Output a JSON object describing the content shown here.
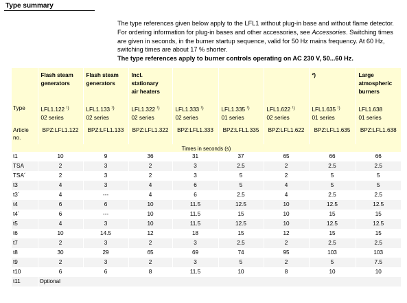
{
  "section_title": "Type summary",
  "intro": {
    "p1": "The type references given below apply to the LFL1 without plug-in base and without flame detector. For ordering information for plug-in bases and other accessories, see",
    "p1_italic": "Accessories",
    "p1_rest": ". Switching times are given in seconds, in the burner startup sequence, valid for 50 Hz mains frequency. At 60 Hz, switching times are about 17 % shorter.",
    "bold_line": "The type references apply to burner controls operating on AC 230 V, 50...60 Hz."
  },
  "table": {
    "headers": [
      [
        "Flash steam",
        "generators"
      ],
      [
        "Flash steam",
        "generators"
      ],
      [
        "Incl.",
        "stationary",
        "air heaters"
      ],
      [
        ""
      ],
      [
        ""
      ],
      [
        ""
      ],
      [
        "²)"
      ],
      [
        "Large",
        "atmospheric",
        "burners"
      ]
    ],
    "type_label": "Type",
    "types": [
      {
        "name": "LFL1.122",
        "sup": "¹)",
        "series": "02 series"
      },
      {
        "name": "LFL1.133",
        "sup": "¹)",
        "series": "02 series"
      },
      {
        "name": "LFL1.322",
        "sup": "¹)",
        "series": "02 series"
      },
      {
        "name": "LFL1.333",
        "sup": "¹)",
        "series": "02 series"
      },
      {
        "name": "LFL1.335",
        "sup": "¹)",
        "series": "01 series"
      },
      {
        "name": "LFL1.622",
        "sup": "¹)",
        "series": "02 series"
      },
      {
        "name": "LFL1.635",
        "sup": "¹)",
        "series": "01 series"
      },
      {
        "name": "LFL1.638",
        "sup": "",
        "series": "01 series"
      }
    ],
    "article_label_1": "Article",
    "article_label_2": "no.",
    "articles": [
      "BPZ:LFL1.122",
      "BPZ:LFL1.133",
      "BPZ:LFL1.322",
      "BPZ:LFL1.333",
      "BPZ:LFL1.335",
      "BPZ:LFL1.622",
      "BPZ:LFL1.635",
      "BPZ:LFL1.638"
    ],
    "times_caption": "Times in seconds (s)",
    "rows": [
      {
        "label": "t1",
        "values": [
          "10",
          "9",
          "36",
          "31",
          "37",
          "65",
          "66",
          "66"
        ]
      },
      {
        "label": "TSA",
        "values": [
          "2",
          "3",
          "2",
          "3",
          "2.5",
          "2",
          "2.5",
          "2.5"
        ]
      },
      {
        "label": "TSA´",
        "values": [
          "2",
          "3",
          "2",
          "3",
          "5",
          "2",
          "5",
          "5"
        ]
      },
      {
        "label": "t3",
        "values": [
          "4",
          "3",
          "4",
          "6",
          "5",
          "4",
          "5",
          "5"
        ]
      },
      {
        "label": "t3´",
        "values": [
          "4",
          "---",
          "4",
          "6",
          "2.5",
          "4",
          "2.5",
          "2.5"
        ]
      },
      {
        "label": "t4",
        "values": [
          "6",
          "6",
          "10",
          "11.5",
          "12.5",
          "10",
          "12.5",
          "12.5"
        ]
      },
      {
        "label": "t4´",
        "values": [
          "6",
          "---",
          "10",
          "11.5",
          "15",
          "10",
          "15",
          "15"
        ]
      },
      {
        "label": "t5",
        "values": [
          "4",
          "3",
          "10",
          "11.5",
          "12.5",
          "10",
          "12.5",
          "12.5"
        ]
      },
      {
        "label": "t6",
        "values": [
          "10",
          "14.5",
          "12",
          "18",
          "15",
          "12",
          "15",
          "15"
        ]
      },
      {
        "label": "t7",
        "values": [
          "2",
          "3",
          "2",
          "3",
          "2.5",
          "2",
          "2.5",
          "2.5"
        ]
      },
      {
        "label": "t8",
        "values": [
          "30",
          "29",
          "65",
          "69",
          "74",
          "95",
          "103",
          "103"
        ]
      },
      {
        "label": "t9",
        "values": [
          "2",
          "3",
          "2",
          "3",
          "5",
          "2",
          "5",
          "7.5"
        ]
      },
      {
        "label": "t10",
        "values": [
          "6",
          "6",
          "8",
          "11.5",
          "10",
          "8",
          "10",
          "10"
        ]
      },
      {
        "label": "t11",
        "values": [
          "Optional",
          "",
          "",
          "",
          "",
          "",
          "",
          ""
        ]
      }
    ]
  },
  "colors": {
    "header_bg": "#fffdd4",
    "alt_row_bg": "#f3f3f3"
  }
}
